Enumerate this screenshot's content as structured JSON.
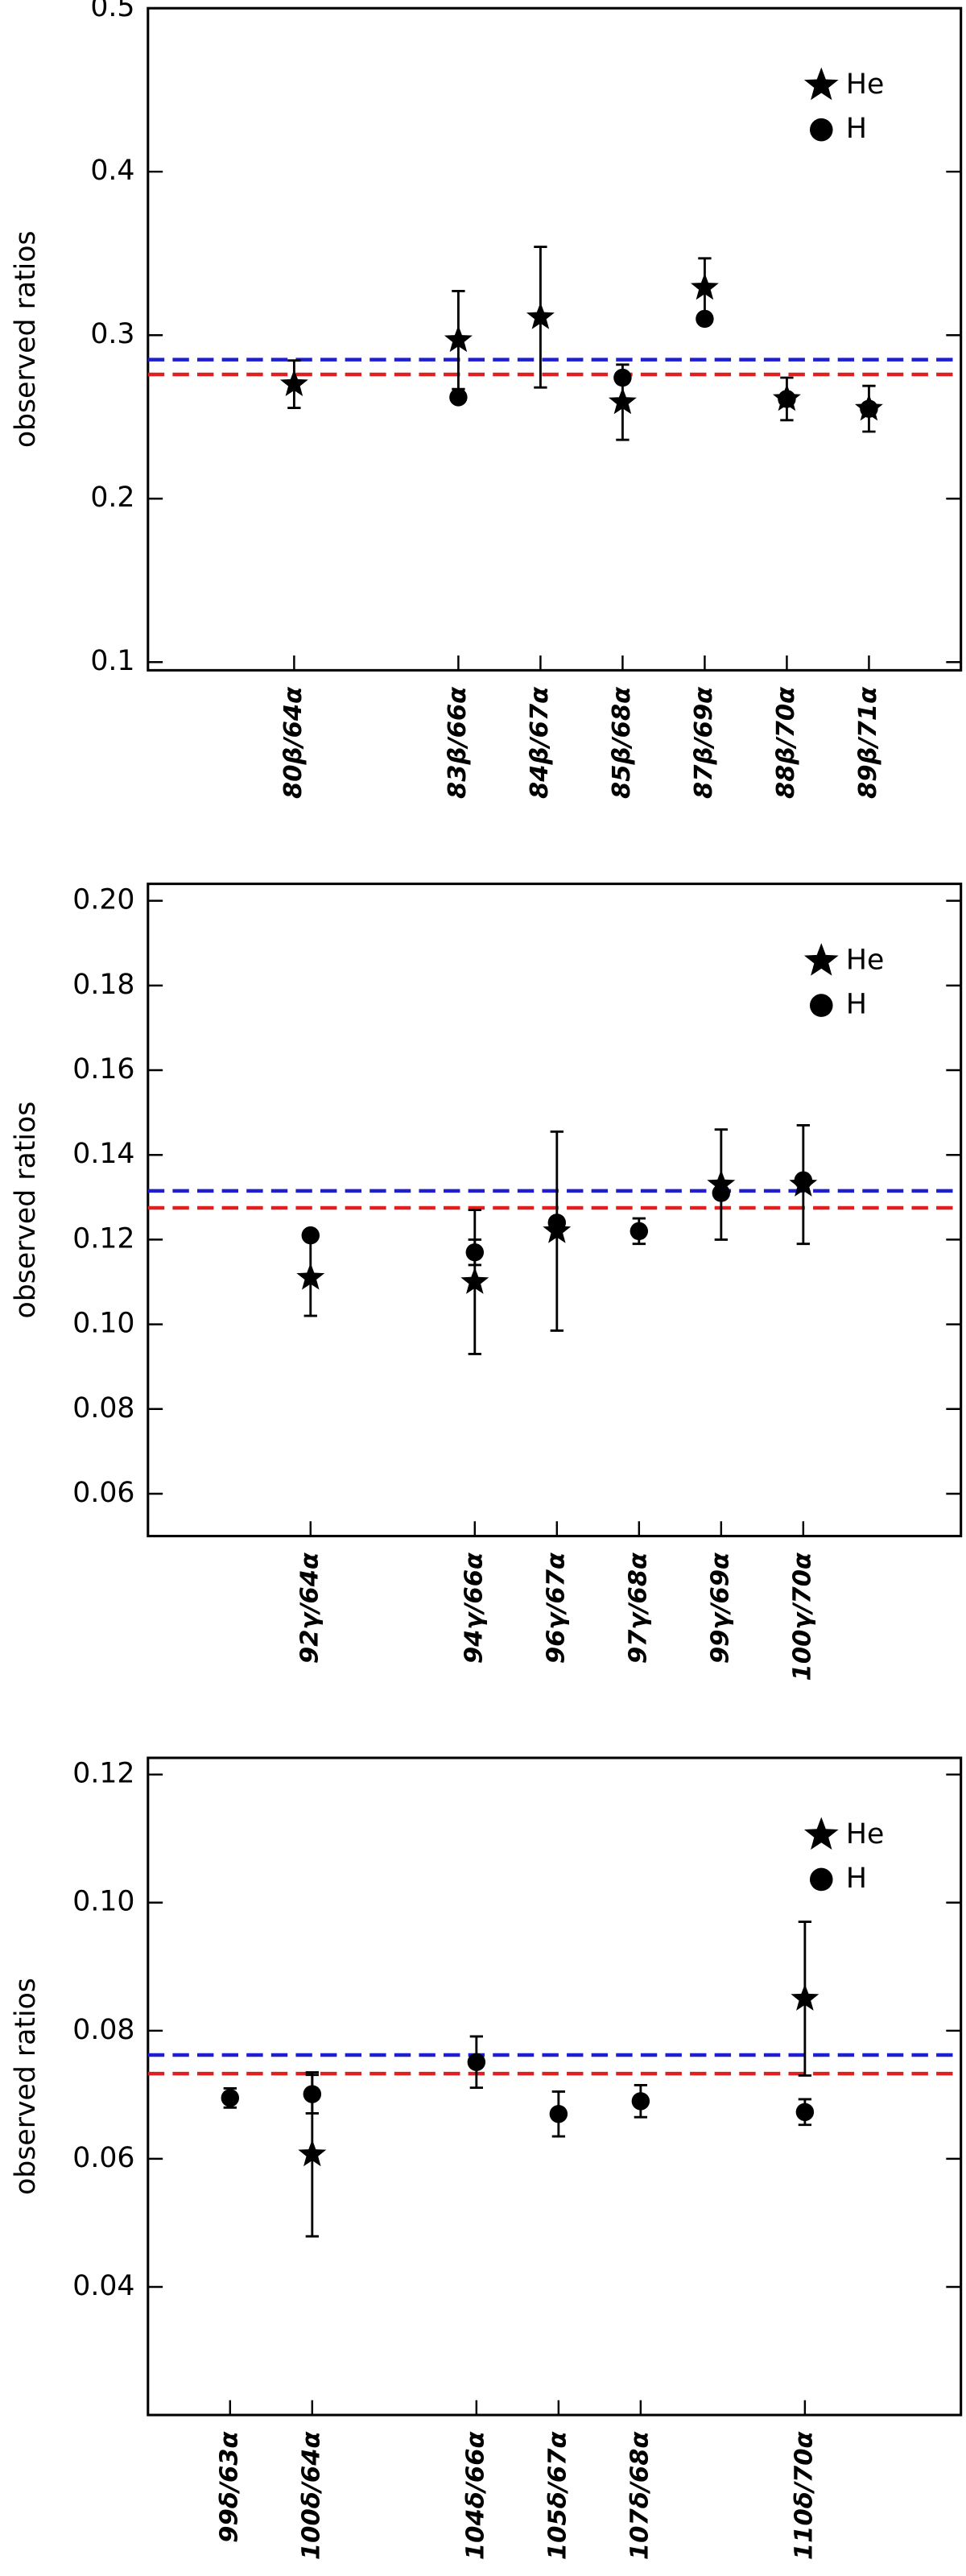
{
  "chart_data": [
    {
      "type": "scatter",
      "y_label": "observed ratios",
      "categories": [
        "80β/64α",
        null,
        "83β/66α",
        "84β/67α",
        "85β/68α",
        "87β/69α",
        "88β/70α",
        "89β/71α"
      ],
      "series": [
        {
          "name": "He",
          "marker": "star",
          "color": "#000000",
          "values": [
            0.27,
            null,
            0.297,
            0.311,
            0.259,
            0.329,
            0.261,
            0.255
          ],
          "errors": [
            0.0145,
            null,
            0.03,
            0.043,
            0.023,
            0.018,
            0.013,
            0.014
          ]
        },
        {
          "name": "H",
          "marker": "circle",
          "color": "#000000",
          "values": [
            null,
            null,
            0.262,
            null,
            0.274,
            0.31,
            0.261,
            0.255
          ],
          "errors": [
            null,
            null,
            null,
            null,
            null,
            null,
            null,
            null
          ]
        }
      ],
      "ylim": [
        0.095,
        0.5
      ],
      "yticks": [
        0.1,
        0.2,
        0.3,
        0.4,
        0.5
      ],
      "hlines": [
        {
          "value": 0.285,
          "color": "#1f1fd0"
        },
        {
          "value": 0.276,
          "color": "#e02020"
        }
      ],
      "legend": "upper right"
    },
    {
      "type": "scatter",
      "y_label": "observed ratios",
      "categories": [
        "92γ/64α",
        null,
        "94γ/66α",
        "96γ/67α",
        "97γ/68α",
        "99γ/69α",
        "100γ/70α"
      ],
      "series": [
        {
          "name": "He",
          "marker": "star",
          "color": "#000000",
          "values": [
            0.111,
            null,
            0.11,
            0.122,
            null,
            0.133,
            0.133
          ],
          "errors": [
            0.009,
            null,
            0.017,
            0.0235,
            null,
            0.013,
            0.014
          ]
        },
        {
          "name": "H",
          "marker": "circle",
          "color": "#000000",
          "values": [
            0.121,
            null,
            0.117,
            0.124,
            0.122,
            0.131,
            0.134
          ],
          "errors": [
            null,
            null,
            0.003,
            null,
            0.003,
            null,
            null
          ]
        }
      ],
      "ylim": [
        0.05,
        0.204
      ],
      "yticks": [
        {
          "value": 0.06,
          "label": "0.06"
        },
        {
          "value": 0.08,
          "label": "0.08"
        },
        {
          "value": 0.1,
          "label": "0.10"
        },
        {
          "value": 0.12,
          "label": "0.12"
        },
        {
          "value": 0.14,
          "label": "0.14"
        },
        {
          "value": 0.16,
          "label": "0.16"
        },
        {
          "value": 0.18,
          "label": "0.18"
        },
        {
          "value": 0.2,
          "label": "0.20"
        }
      ],
      "hlines": [
        {
          "value": 0.1315,
          "color": "#1f1fd0"
        },
        {
          "value": 0.1275,
          "color": "#e02020"
        }
      ],
      "legend": "upper right"
    },
    {
      "type": "scatter",
      "y_label": "observed ratios",
      "categories": [
        "99δ/63α",
        "100δ/64α",
        null,
        "104δ/66α",
        "105δ/67α",
        "107δ/68α",
        null,
        "110δ/70α"
      ],
      "series": [
        {
          "name": "He",
          "marker": "star",
          "color": "#000000",
          "values": [
            null,
            0.0607,
            null,
            null,
            null,
            null,
            null,
            0.085
          ],
          "errors": [
            null,
            0.0128,
            null,
            null,
            null,
            null,
            null,
            0.012
          ]
        },
        {
          "name": "H",
          "marker": "circle",
          "color": "#000000",
          "values": [
            0.0695,
            0.0701,
            null,
            0.0751,
            0.067,
            0.069,
            null,
            0.0673
          ],
          "errors": [
            0.0015,
            0.003,
            null,
            0.004,
            0.0035,
            0.0025,
            null,
            0.002
          ]
        }
      ],
      "ylim": [
        0.02,
        0.1226
      ],
      "yticks": [
        {
          "value": 0.04,
          "label": "0.04"
        },
        {
          "value": 0.06,
          "label": "0.06"
        },
        {
          "value": 0.08,
          "label": "0.08"
        },
        {
          "value": 0.1,
          "label": "0.10"
        },
        {
          "value": 0.12,
          "label": "0.12"
        }
      ],
      "hlines": [
        {
          "value": 0.0762,
          "color": "#1f1fd0"
        },
        {
          "value": 0.0733,
          "color": "#e02020"
        }
      ],
      "legend": "upper right"
    }
  ]
}
